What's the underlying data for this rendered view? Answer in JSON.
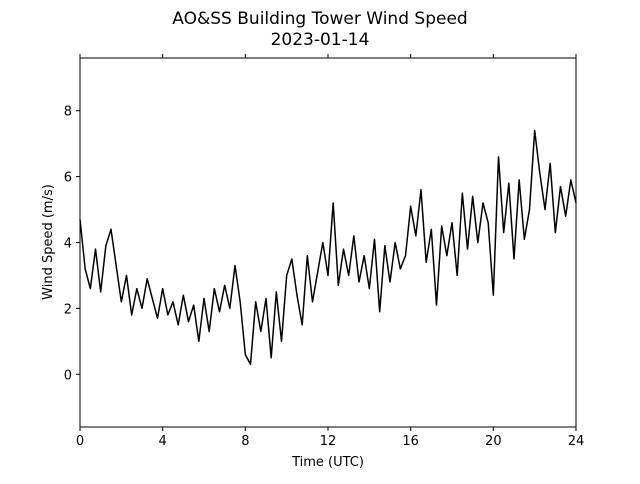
{
  "chart_data": {
    "type": "line",
    "title": "AO&SS Building Tower Wind Speed",
    "subtitle": "2023-01-14",
    "x_label": "Time (UTC)",
    "y_label": "Wind Speed (m/s)",
    "xlim": [
      0,
      24
    ],
    "xticks": [
      0,
      4,
      8,
      12,
      16,
      20,
      24
    ],
    "ylim": [
      -1.6,
      9.6
    ],
    "yticks": [
      0,
      2,
      4,
      6,
      8
    ],
    "series": [
      {
        "color": "#000000",
        "x": [
          0,
          0.25,
          0.5,
          0.75,
          1,
          1.25,
          1.5,
          1.75,
          2,
          2.25,
          2.5,
          2.75,
          3,
          3.25,
          3.5,
          3.75,
          4,
          4.25,
          4.5,
          4.75,
          5,
          5.25,
          5.5,
          5.75,
          6,
          6.25,
          6.5,
          6.75,
          7,
          7.25,
          7.5,
          7.75,
          8,
          8.25,
          8.5,
          8.75,
          9,
          9.25,
          9.5,
          9.75,
          10,
          10.25,
          10.5,
          10.75,
          11,
          11.25,
          11.5,
          11.75,
          12,
          12.25,
          12.5,
          12.75,
          13,
          13.25,
          13.5,
          13.75,
          14,
          14.25,
          14.5,
          14.75,
          15,
          15.25,
          15.5,
          15.75,
          16,
          16.25,
          16.5,
          16.75,
          17,
          17.25,
          17.5,
          17.75,
          18,
          18.25,
          18.5,
          18.75,
          19,
          19.25,
          19.5,
          19.75,
          20,
          20.25,
          20.5,
          20.75,
          21,
          21.25,
          21.5,
          21.75,
          22,
          22.25,
          22.5,
          22.75,
          23,
          23.25,
          23.5,
          23.75,
          24
        ],
        "values": [
          4.7,
          3.2,
          2.6,
          3.8,
          2.5,
          3.9,
          4.4,
          3.3,
          2.2,
          3.0,
          1.8,
          2.6,
          2.0,
          2.9,
          2.3,
          1.7,
          2.6,
          1.8,
          2.2,
          1.5,
          2.4,
          1.6,
          2.1,
          1.0,
          2.3,
          1.3,
          2.6,
          1.9,
          2.7,
          2.0,
          3.3,
          2.2,
          0.6,
          0.3,
          2.2,
          1.3,
          2.3,
          0.5,
          2.5,
          1.0,
          3.0,
          3.5,
          2.4,
          1.5,
          3.6,
          2.2,
          3.1,
          4.0,
          3.0,
          5.2,
          2.7,
          3.8,
          3.0,
          4.2,
          2.8,
          3.6,
          2.6,
          4.1,
          1.9,
          3.9,
          2.8,
          4.0,
          3.2,
          3.6,
          5.1,
          4.2,
          5.6,
          3.4,
          4.4,
          2.1,
          4.5,
          3.6,
          4.6,
          3.0,
          5.5,
          3.8,
          5.4,
          4.0,
          5.2,
          4.6,
          2.4,
          6.6,
          4.3,
          5.8,
          3.5,
          5.9,
          4.1,
          5.0,
          7.4,
          6.1,
          5.0,
          6.4,
          4.3,
          5.7,
          4.8,
          5.9,
          5.2
        ]
      }
    ]
  }
}
